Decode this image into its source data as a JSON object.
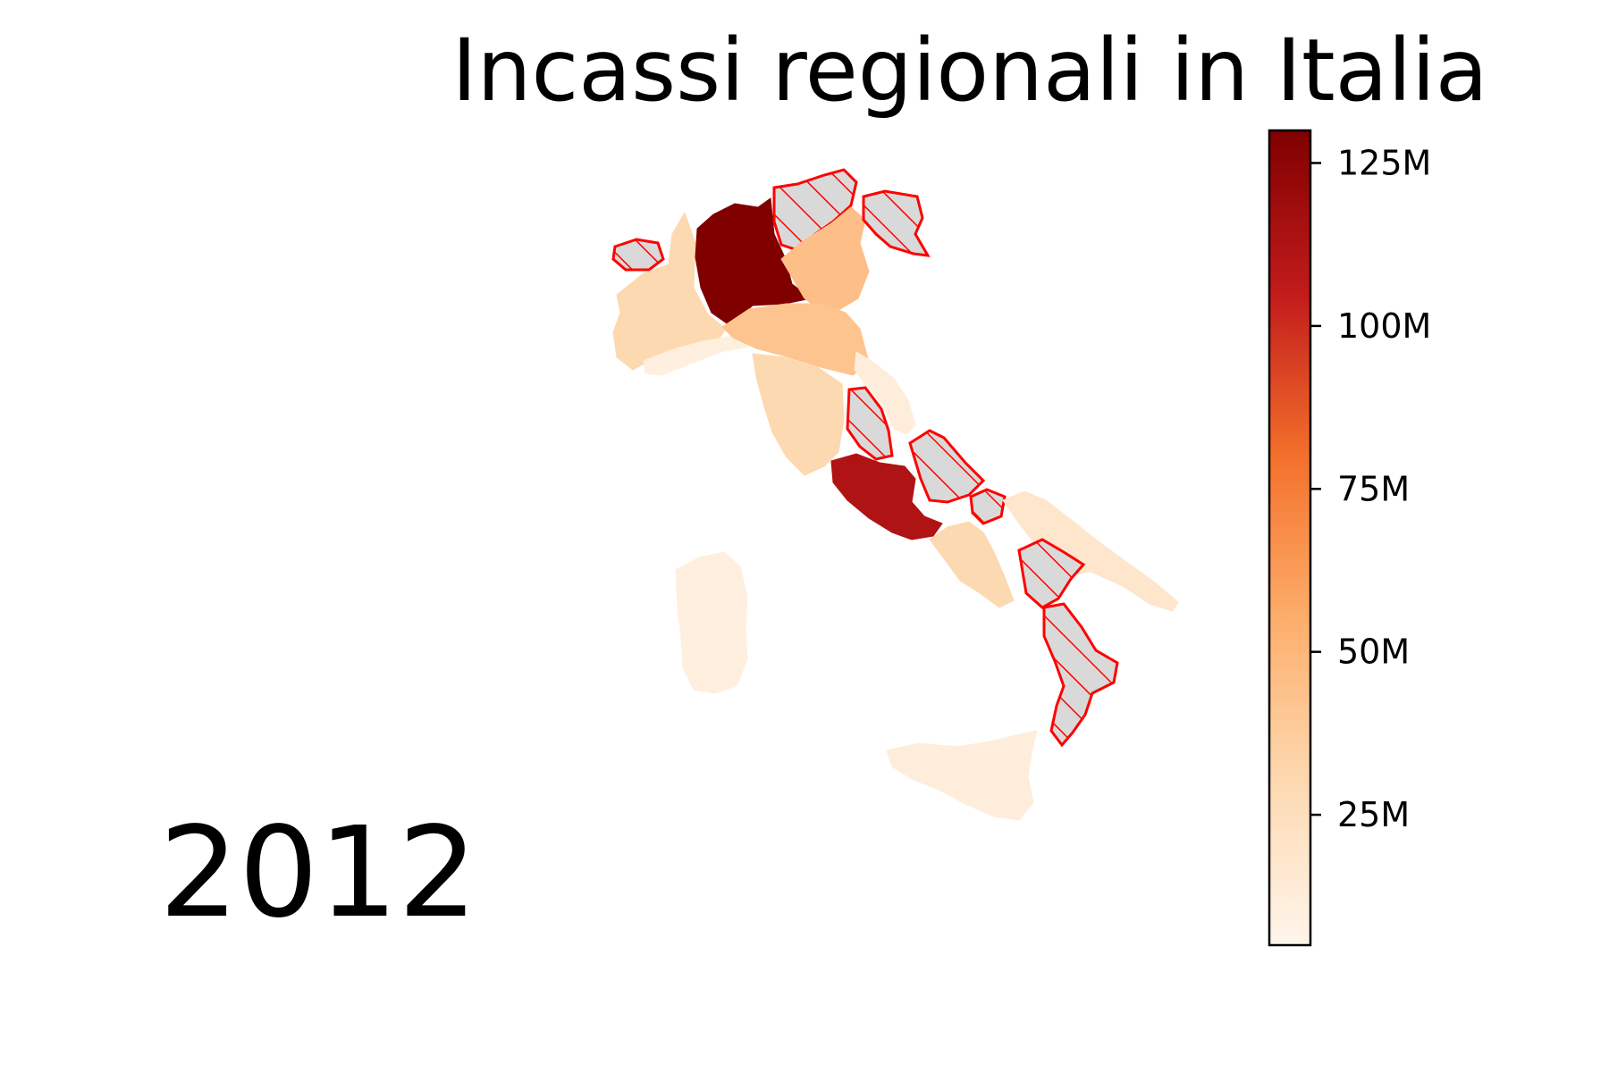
{
  "title": "Incassi regionali in Italia",
  "year": "2012",
  "colorbar": {
    "colormap": [
      "#fff5eb",
      "#fdd9b1",
      "#fdae6b",
      "#f3702b",
      "#c21b1b",
      "#800000"
    ],
    "min": 5,
    "max": 130,
    "ticks": [
      {
        "value": 25,
        "label": "25M"
      },
      {
        "value": 50,
        "label": "50M"
      },
      {
        "value": 75,
        "label": "75M"
      },
      {
        "value": 100,
        "label": "100M"
      },
      {
        "value": 125,
        "label": "125M"
      }
    ]
  },
  "missing_style": {
    "fill": "#d9d9d9",
    "edge": "#ff0000",
    "hatch": "diagonal"
  },
  "regions": [
    {
      "name": "Valle d'Aosta",
      "missing": true
    },
    {
      "name": "Piemonte",
      "value": 30
    },
    {
      "name": "Lombardia",
      "value": 130
    },
    {
      "name": "Trentino-Alto Adige",
      "missing": true
    },
    {
      "name": "Veneto",
      "value": 45
    },
    {
      "name": "Friuli-Venezia Giulia",
      "missing": true
    },
    {
      "name": "Liguria",
      "value": 10
    },
    {
      "name": "Emilia-Romagna",
      "value": 42
    },
    {
      "name": "Toscana",
      "value": 30
    },
    {
      "name": "Umbria",
      "missing": true
    },
    {
      "name": "Marche",
      "value": 12
    },
    {
      "name": "Lazio",
      "value": 112
    },
    {
      "name": "Abruzzo",
      "missing": true
    },
    {
      "name": "Molise",
      "missing": true
    },
    {
      "name": "Campania",
      "value": 30
    },
    {
      "name": "Puglia",
      "value": 18
    },
    {
      "name": "Basilicata",
      "missing": true
    },
    {
      "name": "Calabria",
      "missing": true
    },
    {
      "name": "Sicilia",
      "value": 12
    },
    {
      "name": "Sardegna",
      "value": 10
    }
  ]
}
